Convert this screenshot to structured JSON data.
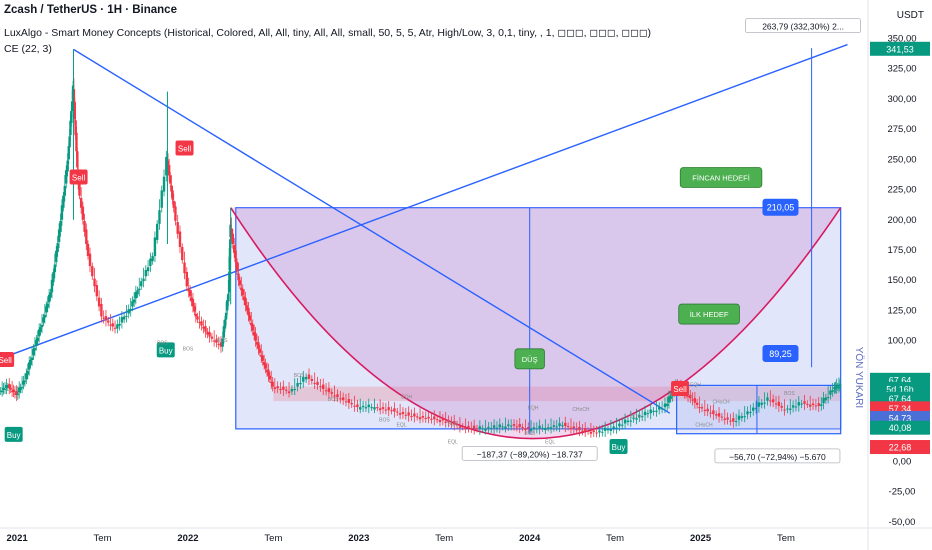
{
  "header": {
    "symbol": "Zcash / TetherUS · 1H · Binance",
    "indicator1": "LuxAlgo - Smart Money Concepts (Historical, Colored, All, All, tiny, All, All, small, 50, 5, 5, Atr, High/Low, 3, 0,1, tiny, , 1, ◻◻◻, ◻◻◻, ◻◻◻)",
    "indicator2": "CE (22, 3)",
    "currency": "USDT"
  },
  "chart_data": {
    "type": "candlestick",
    "title": "Zcash / TetherUS · 1H · Binance",
    "ylim": [
      -55,
      362
    ],
    "xlim": [
      2020.9,
      2025.98
    ],
    "y_ticks": [
      -50,
      -25,
      0,
      25,
      50,
      75,
      100,
      125,
      150,
      175,
      200,
      225,
      250,
      275,
      300,
      325,
      350
    ],
    "y_tick_labels": [
      "-50,00",
      "-25,00",
      "0,00",
      "",
      "",
      "",
      "100,00",
      "125,00",
      "150,00",
      "175,00",
      "200,00",
      "225,00",
      "250,00",
      "275,00",
      "300,00",
      "325,00",
      "350,00"
    ],
    "x_ticks": [
      {
        "x": 2021.0,
        "label": "2021",
        "bold": true
      },
      {
        "x": 2021.5,
        "label": "Tem",
        "bold": false
      },
      {
        "x": 2022.0,
        "label": "2022",
        "bold": true
      },
      {
        "x": 2022.5,
        "label": "Tem",
        "bold": false
      },
      {
        "x": 2023.0,
        "label": "2023",
        "bold": true
      },
      {
        "x": 2023.5,
        "label": "Tem",
        "bold": false
      },
      {
        "x": 2024.0,
        "label": "2024",
        "bold": true
      },
      {
        "x": 2024.5,
        "label": "Tem",
        "bold": false
      },
      {
        "x": 2025.0,
        "label": "2025",
        "bold": true
      },
      {
        "x": 2025.5,
        "label": "Tem",
        "bold": false
      }
    ],
    "price_path": [
      [
        2020.9,
        58
      ],
      [
        2020.95,
        62
      ],
      [
        2021.0,
        55
      ],
      [
        2021.05,
        68
      ],
      [
        2021.1,
        92
      ],
      [
        2021.15,
        115
      ],
      [
        2021.2,
        140
      ],
      [
        2021.25,
        190
      ],
      [
        2021.3,
        250
      ],
      [
        2021.33,
        310
      ],
      [
        2021.36,
        230
      ],
      [
        2021.42,
        170
      ],
      [
        2021.5,
        120
      ],
      [
        2021.58,
        110
      ],
      [
        2021.66,
        125
      ],
      [
        2021.72,
        145
      ],
      [
        2021.8,
        170
      ],
      [
        2021.88,
        250
      ],
      [
        2021.92,
        210
      ],
      [
        2022.0,
        145
      ],
      [
        2022.05,
        120
      ],
      [
        2022.12,
        105
      ],
      [
        2022.2,
        95
      ],
      [
        2022.24,
        140
      ],
      [
        2022.25,
        195
      ],
      [
        2022.3,
        150
      ],
      [
        2022.35,
        125
      ],
      [
        2022.4,
        100
      ],
      [
        2022.45,
        80
      ],
      [
        2022.5,
        62
      ],
      [
        2022.6,
        58
      ],
      [
        2022.7,
        70
      ],
      [
        2022.8,
        60
      ],
      [
        2022.9,
        52
      ],
      [
        2023.0,
        45
      ],
      [
        2023.1,
        45
      ],
      [
        2023.2,
        42
      ],
      [
        2023.3,
        38
      ],
      [
        2023.4,
        36
      ],
      [
        2023.5,
        34
      ],
      [
        2023.6,
        29
      ],
      [
        2023.7,
        27
      ],
      [
        2023.8,
        28
      ],
      [
        2023.9,
        30
      ],
      [
        2024.0,
        27
      ],
      [
        2024.1,
        28
      ],
      [
        2024.2,
        30
      ],
      [
        2024.3,
        26
      ],
      [
        2024.4,
        24
      ],
      [
        2024.5,
        28
      ],
      [
        2024.6,
        35
      ],
      [
        2024.7,
        40
      ],
      [
        2024.8,
        46
      ],
      [
        2024.86,
        63
      ],
      [
        2024.92,
        56
      ],
      [
        2025.0,
        45
      ],
      [
        2025.1,
        38
      ],
      [
        2025.2,
        33
      ],
      [
        2025.3,
        42
      ],
      [
        2025.4,
        52
      ],
      [
        2025.5,
        43
      ],
      [
        2025.6,
        48
      ],
      [
        2025.7,
        46
      ],
      [
        2025.78,
        60
      ],
      [
        2025.82,
        63
      ]
    ],
    "spikes": [
      {
        "x": 2021.33,
        "high": 341,
        "low": 200
      },
      {
        "x": 2021.88,
        "high": 306,
        "low": 180
      },
      {
        "x": 2022.25,
        "high": 210,
        "low": 130
      }
    ],
    "trendlines": [
      {
        "points": [
          [
            2020.9,
            85
          ],
          [
            2025.86,
            345
          ]
        ]
      },
      {
        "points": [
          [
            2021.33,
            341
          ],
          [
            2024.82,
            40
          ]
        ]
      }
    ],
    "cup_curve": [
      [
        2022.25,
        210
      ],
      [
        2024.0,
        18
      ],
      [
        2025.82,
        210
      ]
    ],
    "cup_fill": [
      [
        2022.25,
        210
      ],
      [
        2025.82,
        210
      ],
      [
        2024.0,
        18
      ]
    ],
    "boxes": [
      {
        "x0": 2022.28,
        "x1": 2025.82,
        "y0": 210,
        "y1": 27
      },
      {
        "x0": 2022.5,
        "x1": 2025.82,
        "y0": 62,
        "y1": 50
      },
      {
        "x0": 2024.86,
        "x1": 2025.82,
        "y0": 63,
        "y1": 23
      }
    ],
    "measurements": [
      {
        "label": "−187,37 (−89,20%) −18.737",
        "x": 2024.0,
        "y0": 210,
        "y1": 23,
        "label_x": 2024.0,
        "label_y": 5
      },
      {
        "label": "−56,70 (−72,94%) −5.670",
        "x": 2025.33,
        "y0": 63,
        "y1": 23,
        "label_x": 2025.45,
        "label_y": 3
      },
      {
        "label": "263,79 (332,30%) 2...",
        "x": 2025.65,
        "y0": 78,
        "y1": 342,
        "label_x": 2025.6,
        "label_y": 359
      }
    ],
    "targets": [
      {
        "value_label": "210,05",
        "y": 210,
        "note": "FİNCAN HEDEFİ"
      },
      {
        "value_label": "89,25",
        "y": 89,
        "note": "İLK HEDEF"
      }
    ],
    "price_badges": [
      {
        "label": "341,53",
        "y": 341.5,
        "color": "#089981"
      },
      {
        "label": "67,64",
        "y": 67.6,
        "color": "#089981"
      },
      {
        "label": "5d 16h",
        "y": 60.0,
        "color": "#089981"
      },
      {
        "label": "67,64",
        "y": 52.0,
        "color": "#089981"
      },
      {
        "label": "57,34",
        "y": 44.0,
        "color": "#f23645"
      },
      {
        "label": "54,73",
        "y": 36.0,
        "color": "#4a6fd6"
      },
      {
        "label": "40,08",
        "y": 28.0,
        "color": "#089981"
      },
      {
        "label": "22,68",
        "y": 12.0,
        "color": "#f23645"
      }
    ],
    "signals": [
      {
        "text": "Sell",
        "x": 2020.93,
        "y": 84,
        "kind": "sell"
      },
      {
        "text": "Buy",
        "x": 2020.98,
        "y": 22,
        "kind": "buy"
      },
      {
        "text": "Sell",
        "x": 2021.36,
        "y": 235,
        "kind": "sell"
      },
      {
        "text": "Sell",
        "x": 2021.98,
        "y": 259,
        "kind": "sell"
      },
      {
        "text": "Buy",
        "x": 2021.87,
        "y": 92,
        "kind": "buy"
      },
      {
        "text": "Sell",
        "x": 2024.88,
        "y": 60,
        "kind": "sell"
      },
      {
        "text": "Buy",
        "x": 2024.52,
        "y": 12,
        "kind": "buy"
      }
    ],
    "annotations": [
      {
        "text": "DÜŞ",
        "x": 2024.0,
        "y": 85
      },
      {
        "text": "İLK HEDEF",
        "x": 2025.05,
        "y": 122
      },
      {
        "text": "FİNCAN HEDEFİ",
        "x": 2025.12,
        "y": 235
      }
    ],
    "rotated_text": "YÖN YUKARI",
    "smc_labels": [
      {
        "t": "BOS",
        "x": 2021.85,
        "y": 97
      },
      {
        "t": "BOS",
        "x": 2022.0,
        "y": 92
      },
      {
        "t": "BOS",
        "x": 2022.2,
        "y": 99
      },
      {
        "t": "BOS",
        "x": 2022.65,
        "y": 70
      },
      {
        "t": "BOS",
        "x": 2022.85,
        "y": 50
      },
      {
        "t": "EQH",
        "x": 2023.28,
        "y": 52
      },
      {
        "t": "BOS",
        "x": 2023.15,
        "y": 33
      },
      {
        "t": "EQL",
        "x": 2023.25,
        "y": 29
      },
      {
        "t": "BOS",
        "x": 2023.55,
        "y": 30
      },
      {
        "t": "EQL",
        "x": 2023.55,
        "y": 15
      },
      {
        "t": "EQH",
        "x": 2024.02,
        "y": 43
      },
      {
        "t": "BOS",
        "x": 2024.0,
        "y": 22
      },
      {
        "t": "EQL",
        "x": 2024.12,
        "y": 15
      },
      {
        "t": "CHoCH",
        "x": 2024.3,
        "y": 42
      },
      {
        "t": "BOS",
        "x": 2024.62,
        "y": 36
      },
      {
        "t": "EQH",
        "x": 2024.97,
        "y": 62
      },
      {
        "t": "CHoCH",
        "x": 2025.12,
        "y": 48
      },
      {
        "t": "CHoCH",
        "x": 2025.02,
        "y": 29
      },
      {
        "t": "BOS",
        "x": 2025.52,
        "y": 55
      }
    ],
    "legend": "none",
    "grid": false
  }
}
